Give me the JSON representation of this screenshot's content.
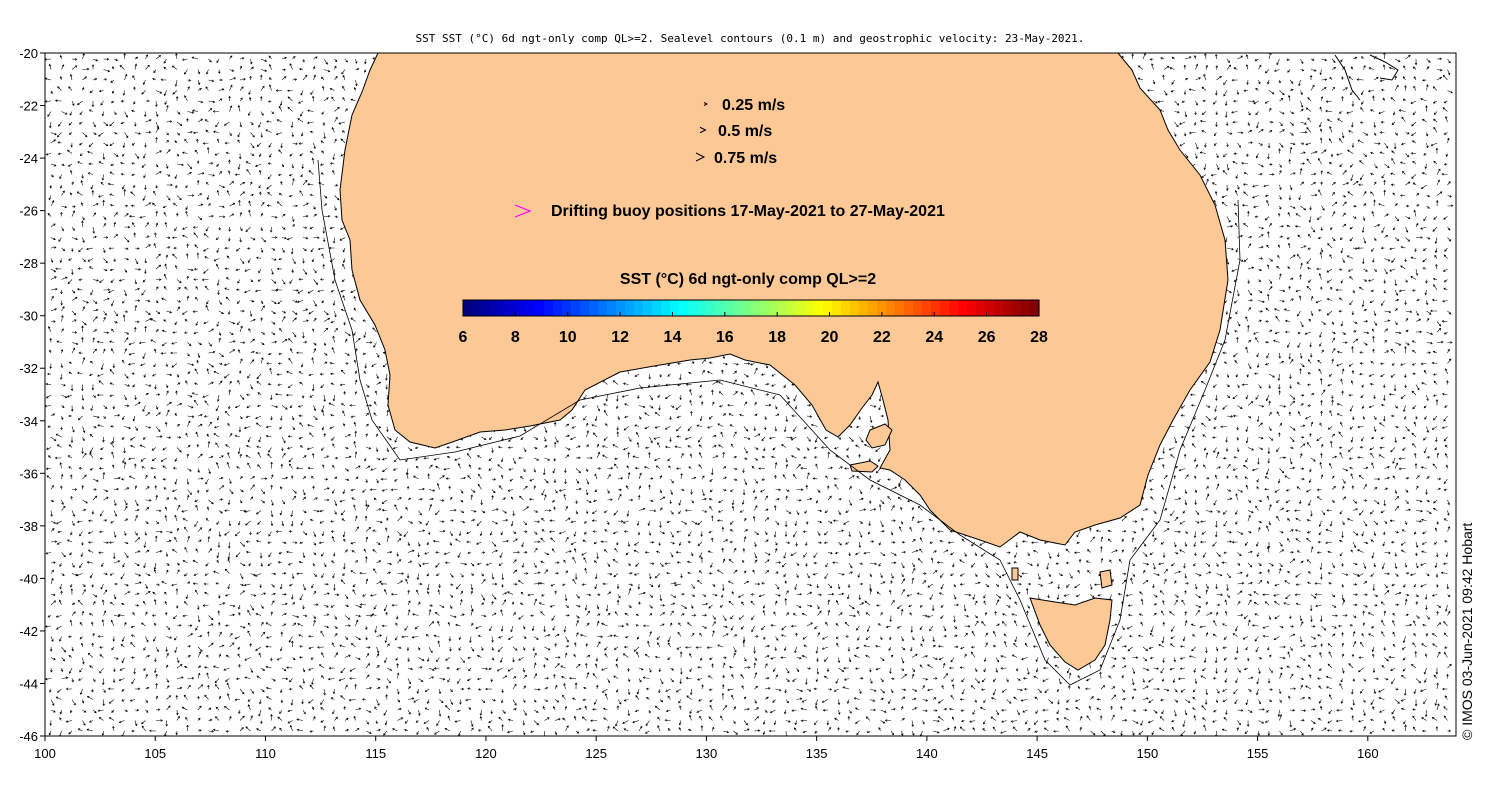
{
  "title": "SST SST (°C) 6d ngt-only comp QL>=2. Sealevel contours (0.1 m) and geostrophic velocity: 23-May-2021.",
  "axes": {
    "x_ticks": [
      "100",
      "105",
      "110",
      "115",
      "120",
      "125",
      "130",
      "135",
      "140",
      "145",
      "150",
      "155",
      "160"
    ],
    "y_ticks": [
      "-20",
      "-22",
      "-24",
      "-26",
      "-28",
      "-30",
      "-32",
      "-34",
      "-36",
      "-38",
      "-40",
      "-42",
      "-44",
      "-46"
    ]
  },
  "map_extent": {
    "lon": [
      100,
      164
    ],
    "lat": [
      -46,
      -20
    ]
  },
  "velocity_legend": [
    {
      "label": "0.25 m/s",
      "speed": 0.25
    },
    {
      "label": "0.5 m/s",
      "speed": 0.5
    },
    {
      "label": "0.75 m/s",
      "speed": 0.75
    }
  ],
  "buoy_legend": {
    "label": "Drifting buoy positions 17-May-2021 to 27-May-2021",
    "color": "#ff00ff"
  },
  "colorbar": {
    "label": "SST (°C) 6d ngt-only comp QL>=2",
    "ticks": [
      "6",
      "8",
      "10",
      "12",
      "14",
      "16",
      "18",
      "20",
      "22",
      "24",
      "26",
      "28"
    ],
    "range": [
      6,
      28
    ]
  },
  "land_color": "#fbc896",
  "copyright": "© IMOS 03-Jun-2021 09:42 Hobart"
}
